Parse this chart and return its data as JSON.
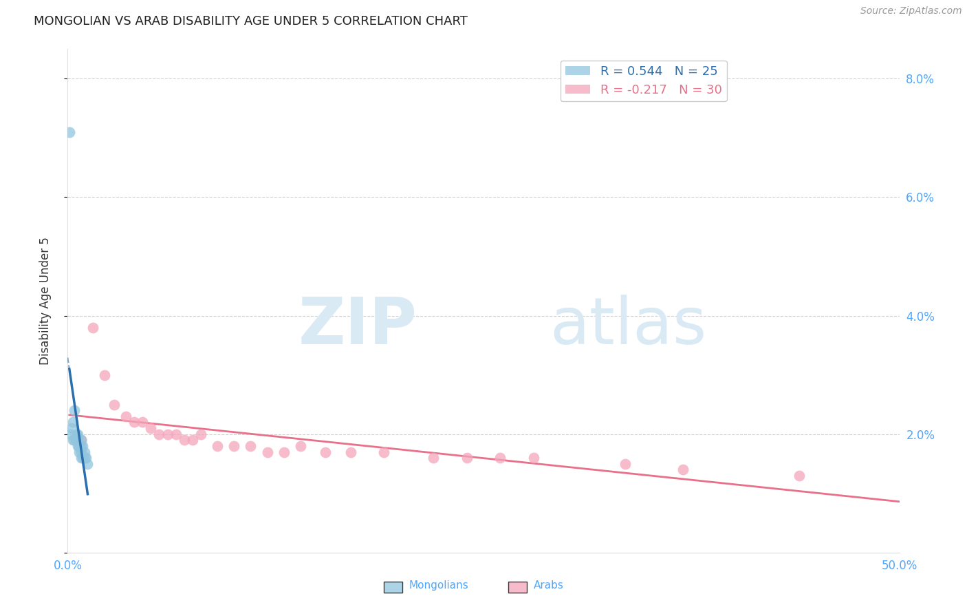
{
  "title": "MONGOLIAN VS ARAB DISABILITY AGE UNDER 5 CORRELATION CHART",
  "source": "Source: ZipAtlas.com",
  "ylabel": "Disability Age Under 5",
  "xlim": [
    0.0,
    0.5
  ],
  "ylim": [
    0.0,
    0.085
  ],
  "yticks": [
    0.0,
    0.02,
    0.04,
    0.06,
    0.08
  ],
  "ytick_labels_right": [
    "",
    "2.0%",
    "4.0%",
    "6.0%",
    "8.0%"
  ],
  "xtick_positions": [
    0.0,
    0.1,
    0.2,
    0.3,
    0.4,
    0.5
  ],
  "xtick_labels": [
    "0.0%",
    "",
    "",
    "",
    "",
    "50.0%"
  ],
  "legend_mongolians": "Mongolians",
  "legend_arabs": "Arabs",
  "r_mongolian": 0.544,
  "n_mongolian": 25,
  "r_arab": -0.217,
  "n_arab": 30,
  "mongolian_color": "#92c5de",
  "arab_color": "#f4a6bb",
  "mongolian_line_color": "#2c6fad",
  "arab_line_color": "#e8708a",
  "background_color": "#ffffff",
  "grid_color": "#d0d0d0",
  "watermark_zip": "ZIP",
  "watermark_atlas": "atlas",
  "mongolian_x": [
    0.001,
    0.002,
    0.0025,
    0.003,
    0.003,
    0.004,
    0.004,
    0.005,
    0.005,
    0.006,
    0.006,
    0.006,
    0.007,
    0.007,
    0.007,
    0.008,
    0.008,
    0.008,
    0.008,
    0.009,
    0.009,
    0.01,
    0.01,
    0.011,
    0.012
  ],
  "mongolian_y": [
    0.071,
    0.02,
    0.021,
    0.022,
    0.019,
    0.024,
    0.019,
    0.02,
    0.019,
    0.02,
    0.019,
    0.018,
    0.018,
    0.018,
    0.017,
    0.019,
    0.018,
    0.017,
    0.016,
    0.018,
    0.016,
    0.017,
    0.016,
    0.016,
    0.015
  ],
  "arab_x": [
    0.008,
    0.015,
    0.022,
    0.028,
    0.035,
    0.04,
    0.045,
    0.05,
    0.055,
    0.06,
    0.065,
    0.07,
    0.075,
    0.08,
    0.09,
    0.1,
    0.11,
    0.12,
    0.13,
    0.14,
    0.155,
    0.17,
    0.19,
    0.22,
    0.24,
    0.26,
    0.28,
    0.335,
    0.37,
    0.44
  ],
  "arab_y": [
    0.019,
    0.038,
    0.03,
    0.025,
    0.023,
    0.022,
    0.022,
    0.021,
    0.02,
    0.02,
    0.02,
    0.019,
    0.019,
    0.02,
    0.018,
    0.018,
    0.018,
    0.017,
    0.017,
    0.018,
    0.017,
    0.017,
    0.017,
    0.016,
    0.016,
    0.016,
    0.016,
    0.015,
    0.014,
    0.013
  ]
}
